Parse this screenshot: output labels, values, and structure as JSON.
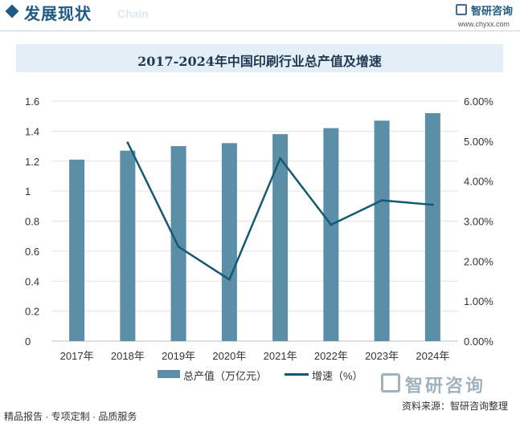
{
  "header": {
    "title": "发展现状",
    "subtitle": "Chain",
    "brand_name": "智研咨询",
    "brand_url": "www.chyxx.com"
  },
  "colors": {
    "brand": "#1e5a84",
    "bar": "#5b8fa8",
    "line": "#135a75",
    "title_bg": "#e3eef7"
  },
  "chart_data": {
    "type": "bar",
    "title": "2017-2024年中国印刷行业总产值及增速",
    "categories": [
      "2017年",
      "2018年",
      "2019年",
      "2020年",
      "2021年",
      "2022年",
      "2023年",
      "2024年"
    ],
    "series": [
      {
        "name": "总产值（万亿元）",
        "type": "bar",
        "axis": "left",
        "values": [
          1.21,
          1.27,
          1.3,
          1.32,
          1.38,
          1.42,
          1.47,
          1.52
        ]
      },
      {
        "name": "增速（%）",
        "type": "line",
        "axis": "right",
        "values": [
          null,
          4.96,
          2.36,
          1.54,
          4.57,
          2.91,
          3.52,
          3.41
        ]
      }
    ],
    "y_left": {
      "min": 0,
      "max": 1.6,
      "ticks": [
        "0",
        "0.2",
        "0.4",
        "0.6",
        "0.8",
        "1",
        "1.2",
        "1.4",
        "1.6"
      ]
    },
    "y_right": {
      "min": 0,
      "max": 6,
      "ticks": [
        "0.00%",
        "1.00%",
        "2.00%",
        "3.00%",
        "4.00%",
        "5.00%",
        "6.00%"
      ]
    },
    "grid": true,
    "legend": "bottom"
  },
  "footer": {
    "source": "资料来源：智研咨询整理",
    "tagline": "精品报告 · 专项定制 · 品质服务",
    "brand_name": "智研咨询"
  }
}
